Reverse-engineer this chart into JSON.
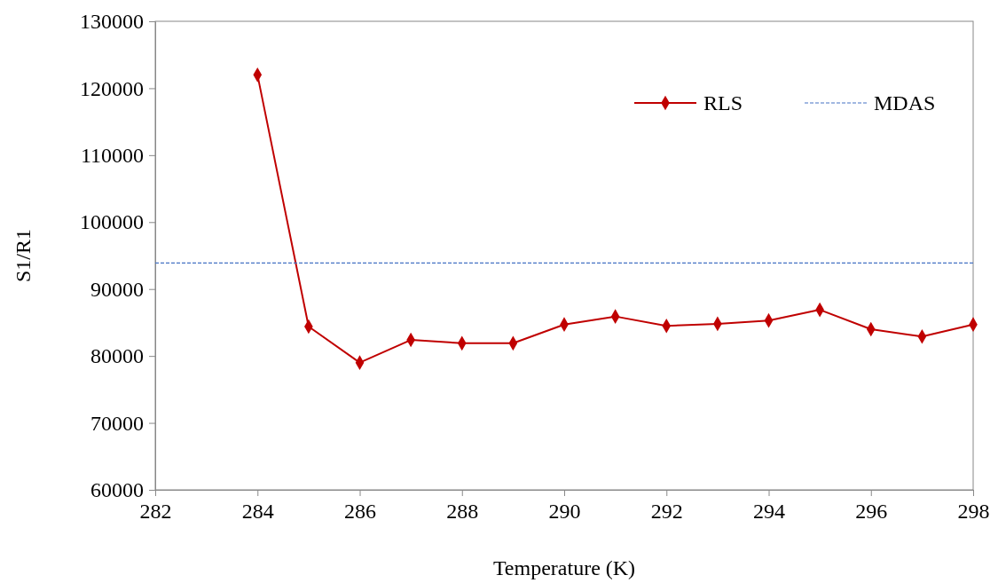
{
  "chart_data": {
    "type": "line",
    "xlabel": "Temperature (K)",
    "ylabel": "S1/R1",
    "xlim": [
      282,
      298
    ],
    "xticks": [
      282,
      284,
      286,
      288,
      290,
      292,
      294,
      296,
      298
    ],
    "ylim": [
      60000,
      130000
    ],
    "yticks": [
      60000,
      70000,
      80000,
      90000,
      100000,
      110000,
      120000,
      130000
    ],
    "grid": false,
    "legend": "top right",
    "series": [
      {
        "name": "RLS",
        "color": "#c00000",
        "marker": "diamond",
        "line_style": "solid",
        "x": [
          284,
          285,
          286,
          287,
          288,
          289,
          290,
          291,
          292,
          293,
          294,
          295,
          296,
          297,
          298
        ],
        "values": [
          122000,
          84400,
          79000,
          82400,
          81900,
          81900,
          84700,
          85900,
          84500,
          84800,
          85300,
          86900,
          84000,
          82900,
          84700
        ]
      },
      {
        "name": "MDAS",
        "color": "#4472c4",
        "marker": "none",
        "line_style": "dashed",
        "x": [
          282,
          298
        ],
        "values": [
          93900,
          93900
        ]
      }
    ]
  }
}
